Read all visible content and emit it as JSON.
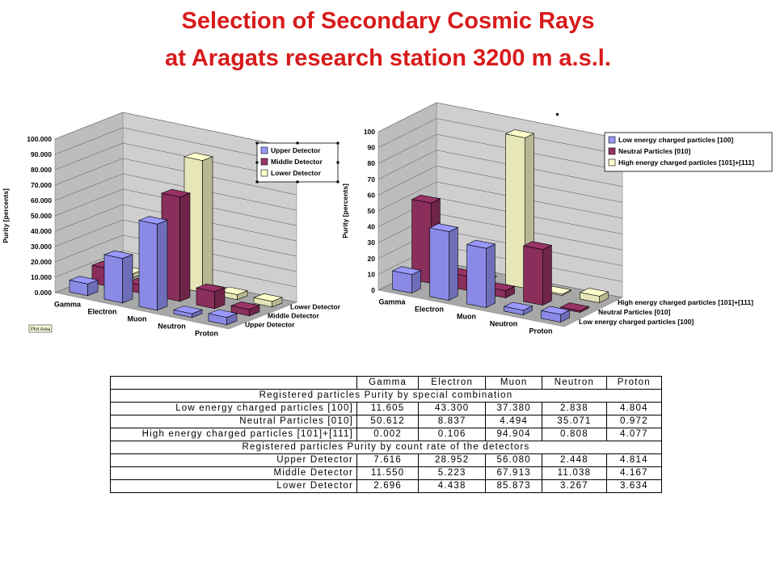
{
  "title": {
    "line1": "Selection of Secondary Cosmic Rays",
    "line2": "at Aragats research station 3200 m a.s.l."
  },
  "colors": {
    "title": "#d81b1b",
    "upper_or_low_energy": "#9999ff",
    "middle_or_neutral": "#993366",
    "lower_or_high_energy": "#ffffcc"
  },
  "chart_data": [
    {
      "type": "bar",
      "variant": "3d",
      "ylabel": "Purity [percents]",
      "ylim": [
        0,
        100
      ],
      "yticks": [
        "0.000",
        "10.000",
        "20.000",
        "30.000",
        "40.000",
        "50.000",
        "60.000",
        "70.000",
        "80.000",
        "90.000",
        "100.000"
      ],
      "categories": [
        "Gamma",
        "Electron",
        "Muon",
        "Neutron",
        "Proton"
      ],
      "depth_labels": [
        "Lower Detector",
        "Middle Detector",
        "Upper Detector"
      ],
      "legend_position": "top-right",
      "tag": "Plot Area",
      "series": [
        {
          "name": "Upper Detector",
          "color": "#9999ff",
          "values": [
            7.616,
            28.952,
            56.08,
            2.448,
            4.814
          ]
        },
        {
          "name": "Middle Detector",
          "color": "#993366",
          "values": [
            11.55,
            5.223,
            67.913,
            11.038,
            4.167
          ]
        },
        {
          "name": "Lower Detector",
          "color": "#ffffcc",
          "values": [
            2.696,
            4.438,
            85.873,
            3.267,
            3.634
          ]
        }
      ]
    },
    {
      "type": "bar",
      "variant": "3d",
      "ylabel": "Purity [percents]",
      "ylim": [
        0,
        100
      ],
      "yticks": [
        "0",
        "10",
        "20",
        "30",
        "40",
        "50",
        "60",
        "70",
        "80",
        "90",
        "100"
      ],
      "categories": [
        "Gamma",
        "Electron",
        "Muon",
        "Neutron",
        "Proton"
      ],
      "depth_labels": [
        "High energy charged particles [101]+[111]",
        "Neutral Particles [010]",
        "Low energy charged particles [100]"
      ],
      "legend_position": "top-right",
      "series": [
        {
          "name": "Low energy charged particles [100]",
          "color": "#9999ff",
          "values": [
            11.605,
            43.3,
            37.38,
            2.838,
            4.804
          ]
        },
        {
          "name": "Neutral Particles [010]",
          "color": "#993366",
          "values": [
            50.612,
            8.837,
            4.494,
            35.071,
            0.972
          ]
        },
        {
          "name": "High energy charged particles [101]+[111]",
          "color": "#ffffcc",
          "values": [
            0.002,
            0.106,
            94.904,
            0.808,
            4.077
          ]
        }
      ]
    },
    {
      "type": "table",
      "columns": [
        "Gamma",
        "Electron",
        "Muon",
        "Neutron",
        "Proton"
      ],
      "section1_header": "Registered particles Purity by special combination",
      "section1_rows": [
        {
          "label": "Low energy charged particles [100]",
          "values": [
            "11.605",
            "43.300",
            "37.380",
            "2.838",
            "4.804"
          ]
        },
        {
          "label": "Neutral Particles [010]",
          "values": [
            "50.612",
            "8.837",
            "4.494",
            "35.071",
            "0.972"
          ]
        },
        {
          "label": "High energy charged particles [101]+[111]",
          "values": [
            "0.002",
            "0.106",
            "94.904",
            "0.808",
            "4.077"
          ]
        }
      ],
      "section2_header": "Registered particles Purity by count rate of the detectors",
      "section2_rows": [
        {
          "label": "Upper Detector",
          "values": [
            "7.616",
            "28.952",
            "56.080",
            "2.448",
            "4.814"
          ]
        },
        {
          "label": "Middle Detector",
          "values": [
            "11.550",
            "5.223",
            "67.913",
            "11.038",
            "4.167"
          ]
        },
        {
          "label": "Lower Detector",
          "values": [
            "2.696",
            "4.438",
            "85.873",
            "3.267",
            "3.634"
          ]
        }
      ]
    }
  ]
}
